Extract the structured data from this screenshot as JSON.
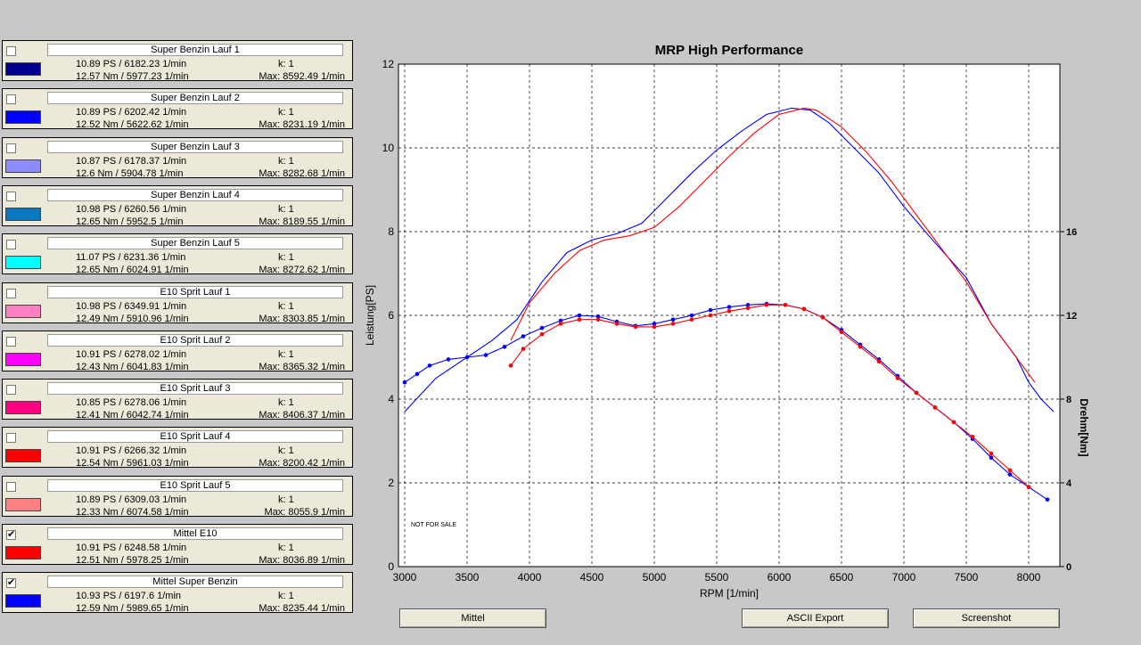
{
  "panels": [
    {
      "checked": false,
      "name": "Super Benzin Lauf 1",
      "ps": "10.89 PS / 6182.23 1/min",
      "k": "k: 1",
      "nm": "12.57 Nm / 5977.23 1/min",
      "max": "Max: 8592.49 1/min",
      "color": "#000090"
    },
    {
      "checked": false,
      "name": "Super Benzin Lauf 2",
      "ps": "10.89 PS / 6202.42 1/min",
      "k": "k: 1",
      "nm": "12.52 Nm / 5622.62 1/min",
      "max": "Max: 8231.19 1/min",
      "color": "#0000ff"
    },
    {
      "checked": false,
      "name": "Super Benzin Lauf 3",
      "ps": "10.87 PS / 6178.37 1/min",
      "k": "k: 1",
      "nm": "12.6 Nm / 5904.78 1/min",
      "max": "Max: 8282.68 1/min",
      "color": "#8c8cff"
    },
    {
      "checked": false,
      "name": "Super Benzin Lauf 4",
      "ps": "10.98 PS / 6260.56 1/min",
      "k": "k: 1",
      "nm": "12.65 Nm / 5952.5 1/min",
      "max": "Max: 8189.55 1/min",
      "color": "#0a78c0"
    },
    {
      "checked": false,
      "name": "Super Benzin Lauf 5",
      "ps": "11.07 PS / 6231.36 1/min",
      "k": "k: 1",
      "nm": "12.65 Nm / 6024.91 1/min",
      "max": "Max: 8272.62 1/min",
      "color": "#00ffff"
    },
    {
      "checked": false,
      "name": "E10 Sprit Lauf 1",
      "ps": "10.98 PS / 6349.91 1/min",
      "k": "k: 1",
      "nm": "12.49 Nm / 5910.96 1/min",
      "max": "Max: 8303.85 1/min",
      "color": "#ff80c0"
    },
    {
      "checked": false,
      "name": "E10 Sprit Lauf 2",
      "ps": "10.91 PS / 6278.02 1/min",
      "k": "k: 1",
      "nm": "12.43 Nm / 6041.83 1/min",
      "max": "Max: 8365.32 1/min",
      "color": "#ff00ff"
    },
    {
      "checked": false,
      "name": "E10 Sprit Lauf 3",
      "ps": "10.85 PS / 6278.06 1/min",
      "k": "k: 1",
      "nm": "12.41 Nm / 6042.74 1/min",
      "max": "Max: 8406.37 1/min",
      "color": "#ff0080"
    },
    {
      "checked": false,
      "name": "E10 Sprit Lauf 4",
      "ps": "10.91 PS / 6266.32 1/min",
      "k": "k: 1",
      "nm": "12.54 Nm / 5961.03 1/min",
      "max": "Max: 8200.42 1/min",
      "color": "#ff0000"
    },
    {
      "checked": false,
      "name": "E10 Sprit Lauf 5",
      "ps": "10.89 PS / 6309.03 1/min",
      "k": "k: 1",
      "nm": "12.33 Nm / 6074.58 1/min",
      "max": "Max: 8055.9 1/min",
      "color": "#ff8080"
    },
    {
      "checked": true,
      "name": "Mittel E10",
      "ps": "10.91 PS / 6248.58 1/min",
      "k": "k: 1",
      "nm": "12.51 Nm / 5978.25 1/min",
      "max": "Max: 8036.89 1/min",
      "color": "#ff0000"
    },
    {
      "checked": true,
      "name": "Mittel Super Benzin",
      "ps": "10.93 PS / 6197.6 1/min",
      "k": "k: 1",
      "nm": "12.59 Nm / 5989.65 1/min",
      "max": "Max: 8235.44 1/min",
      "color": "#0000ff"
    }
  ],
  "checkmark": "✔",
  "buttons": {
    "mittel": "Mittel",
    "ascii": "ASCII Export",
    "screenshot": "Screenshot"
  },
  "chart_data": {
    "type": "line",
    "title": "MRP High Performance",
    "xlabel": "RPM [1/min]",
    "ylabel": "Leistung[PS]",
    "y2label": "Drehm[Nm]",
    "xlim": [
      2950,
      8250
    ],
    "ylim": [
      0,
      12
    ],
    "y2lim": [
      0,
      24
    ],
    "xticks": [
      3000,
      3500,
      4000,
      4500,
      5000,
      5500,
      6000,
      6500,
      7000,
      7500,
      8000
    ],
    "yticks": [
      0,
      2,
      4,
      6,
      8,
      10,
      12
    ],
    "y2ticks": [
      0,
      4,
      8,
      12,
      16
    ],
    "grid": true,
    "annotation": "NOT FOR SALE",
    "series": [
      {
        "name": "Mittel Super Benzin",
        "color": "#0000ff",
        "axis": "left",
        "x": [
          3000,
          3250,
          3500,
          3700,
          3900,
          4100,
          4300,
          4500,
          4700,
          4900,
          5100,
          5300,
          5500,
          5700,
          5900,
          6100,
          6250,
          6400,
          6600,
          6800,
          7000,
          7200,
          7500,
          7700,
          7900,
          8000,
          8100,
          8200
        ],
        "y": [
          3.7,
          4.5,
          5.0,
          5.4,
          5.9,
          6.8,
          7.5,
          7.8,
          7.95,
          8.2,
          8.8,
          9.4,
          9.95,
          10.4,
          10.8,
          10.95,
          10.9,
          10.6,
          10.0,
          9.4,
          8.6,
          7.9,
          6.9,
          5.8,
          5.0,
          4.4,
          4.0,
          3.7
        ]
      },
      {
        "name": "Mittel E10",
        "color": "#ff0000",
        "axis": "left",
        "x": [
          3850,
          4000,
          4200,
          4400,
          4600,
          4800,
          5000,
          5200,
          5400,
          5600,
          5800,
          6000,
          6200,
          6300,
          6500,
          6700,
          6900,
          7100,
          7300,
          7500,
          7700,
          7900,
          8050
        ],
        "y": [
          5.4,
          6.3,
          7.0,
          7.55,
          7.8,
          7.9,
          8.1,
          8.6,
          9.2,
          9.8,
          10.35,
          10.8,
          10.95,
          10.9,
          10.5,
          9.9,
          9.2,
          8.4,
          7.6,
          6.8,
          5.8,
          5.0,
          4.4
        ]
      },
      {
        "name": "Mittel Super Benzin",
        "color": "#0000ff",
        "axis": "right",
        "markers": true,
        "x": [
          3000,
          3100,
          3200,
          3350,
          3500,
          3650,
          3800,
          3950,
          4100,
          4250,
          4400,
          4550,
          4700,
          4850,
          5000,
          5150,
          5300,
          5450,
          5600,
          5750,
          5900,
          6050,
          6200,
          6350,
          6500,
          6650,
          6800,
          6950,
          7100,
          7250,
          7400,
          7550,
          7700,
          7850,
          8000,
          8150
        ],
        "y": [
          8.8,
          9.2,
          9.6,
          9.9,
          10.0,
          10.1,
          10.5,
          11.0,
          11.4,
          11.75,
          12.0,
          11.95,
          11.7,
          11.5,
          11.6,
          11.8,
          12.0,
          12.25,
          12.4,
          12.5,
          12.55,
          12.5,
          12.3,
          11.9,
          11.3,
          10.6,
          9.9,
          9.1,
          8.3,
          7.6,
          6.9,
          6.1,
          5.2,
          4.4,
          3.8,
          3.2
        ]
      },
      {
        "name": "Mittel E10",
        "color": "#ff0000",
        "axis": "right",
        "markers": true,
        "x": [
          3850,
          3950,
          4100,
          4250,
          4400,
          4550,
          4700,
          4850,
          5000,
          5150,
          5300,
          5450,
          5600,
          5750,
          5900,
          6050,
          6200,
          6350,
          6500,
          6650,
          6800,
          6950,
          7100,
          7250,
          7400,
          7550,
          7700,
          7850,
          8000
        ],
        "y": [
          9.6,
          10.4,
          11.1,
          11.6,
          11.8,
          11.8,
          11.6,
          11.45,
          11.45,
          11.6,
          11.8,
          12.0,
          12.2,
          12.35,
          12.5,
          12.5,
          12.3,
          11.9,
          11.2,
          10.5,
          9.8,
          9.0,
          8.3,
          7.6,
          6.9,
          6.2,
          5.4,
          4.6,
          3.8
        ]
      }
    ]
  }
}
